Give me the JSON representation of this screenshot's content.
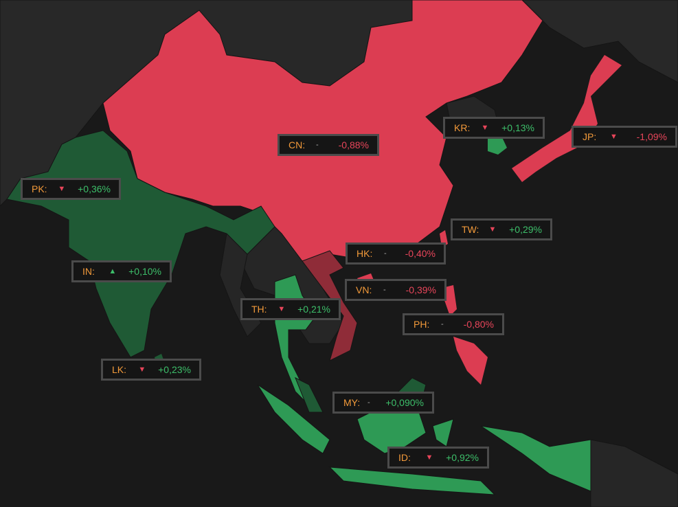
{
  "colors": {
    "background": "#191919",
    "land": "#2a2a2a",
    "negative": "#dc3d52",
    "negative_dark": "#8f2c38",
    "positive": "#2e9a55",
    "positive_dark": "#1f5a35",
    "label_code": "#f39a3a"
  },
  "labels": [
    {
      "code": "CN:",
      "trend": "-",
      "trend_icon": "none",
      "value": "-0,88%",
      "sign": "neg"
    },
    {
      "code": "KR:",
      "trend": "▼",
      "trend_icon": "down",
      "value": "+0,13%",
      "sign": "pos"
    },
    {
      "code": "JP:",
      "trend": "▼",
      "trend_icon": "down",
      "value": "-1,09%",
      "sign": "neg"
    },
    {
      "code": "PK:",
      "trend": "▼",
      "trend_icon": "down",
      "value": "+0,36%",
      "sign": "pos"
    },
    {
      "code": "IN:",
      "trend": "▲",
      "trend_icon": "up",
      "value": "+0,10%",
      "sign": "pos"
    },
    {
      "code": "HK:",
      "trend": "-",
      "trend_icon": "none",
      "value": "-0,40%",
      "sign": "neg"
    },
    {
      "code": "TW:",
      "trend": "▼",
      "trend_icon": "down",
      "value": "+0,29%",
      "sign": "pos"
    },
    {
      "code": "TH:",
      "trend": "▼",
      "trend_icon": "down",
      "value": "+0,21%",
      "sign": "pos"
    },
    {
      "code": "VN:",
      "trend": "-",
      "trend_icon": "none",
      "value": "-0,39%",
      "sign": "neg"
    },
    {
      "code": "PH:",
      "trend": "-",
      "trend_icon": "none",
      "value": "-0,80%",
      "sign": "neg"
    },
    {
      "code": "LK:",
      "trend": "▼",
      "trend_icon": "down",
      "value": "+0,23%",
      "sign": "pos"
    },
    {
      "code": "MY:",
      "trend": "-",
      "trend_icon": "none",
      "value": "+0,090%",
      "sign": "pos"
    },
    {
      "code": "ID:",
      "trend": "▼",
      "trend_icon": "down",
      "value": "+0,92%",
      "sign": "pos"
    }
  ]
}
